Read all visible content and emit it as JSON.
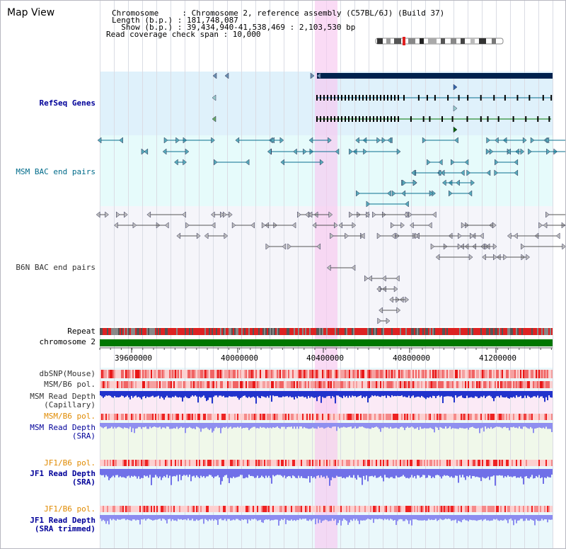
{
  "view_title": "Map View",
  "header": {
    "line1": "Chromosome     : Chromosome 2, reference assembly (C57BL/6J) (Build 37)",
    "line2": "Length (b.p.) : 181,748,087",
    "line3": "  Show (b.p.) : 39,434,940-41,538,469 : 2,103,530 bp",
    "line4": "Read coverage check span : 10,000"
  },
  "tracks": {
    "refseq": "RefSeq Genes",
    "msm_bac": "MSM BAC end pairs",
    "b6n_bac": "B6N BAC end pairs",
    "repeat": "Repeat",
    "chromosome": "chromosome 2",
    "dbsnp": "dbSNP(Mouse)",
    "msm_b6_pol": "MSM/B6 pol.",
    "msm_depth_cap_1": "MSM Read Depth",
    "msm_depth_cap_2": "(Capillary)",
    "msm_b6_pol2": "MSM/B6 pol.",
    "msm_depth_sra_1": "MSM Read Depth",
    "msm_depth_sra_2": "(SRA)",
    "jf1_pol": "JF1/B6 pol.",
    "jf1_depth_1": "JF1 Read Depth",
    "jf1_depth_2": "(SRA)",
    "jf1_pol2": "JF1/B6 pol.",
    "jf1_trim_1": "JF1 Read Depth",
    "jf1_trim_2": "(SRA trimmed)"
  },
  "axis": {
    "ticks": [
      "39600000",
      "40000000",
      "40400000",
      "40800000",
      "41200000"
    ]
  },
  "colors": {
    "refseq_bg": "#dff1fb",
    "msm_bg": "#e6fbfb",
    "b6n_bg": "#f4f4fa",
    "highlight": "#f8d8f4",
    "track_blue": "#000099",
    "track_teal": "#006b8a",
    "track_gray": "#333333",
    "track_orange": "#e08a00",
    "chrom_green": "#007700",
    "repeat_red": "#dd2222"
  }
}
